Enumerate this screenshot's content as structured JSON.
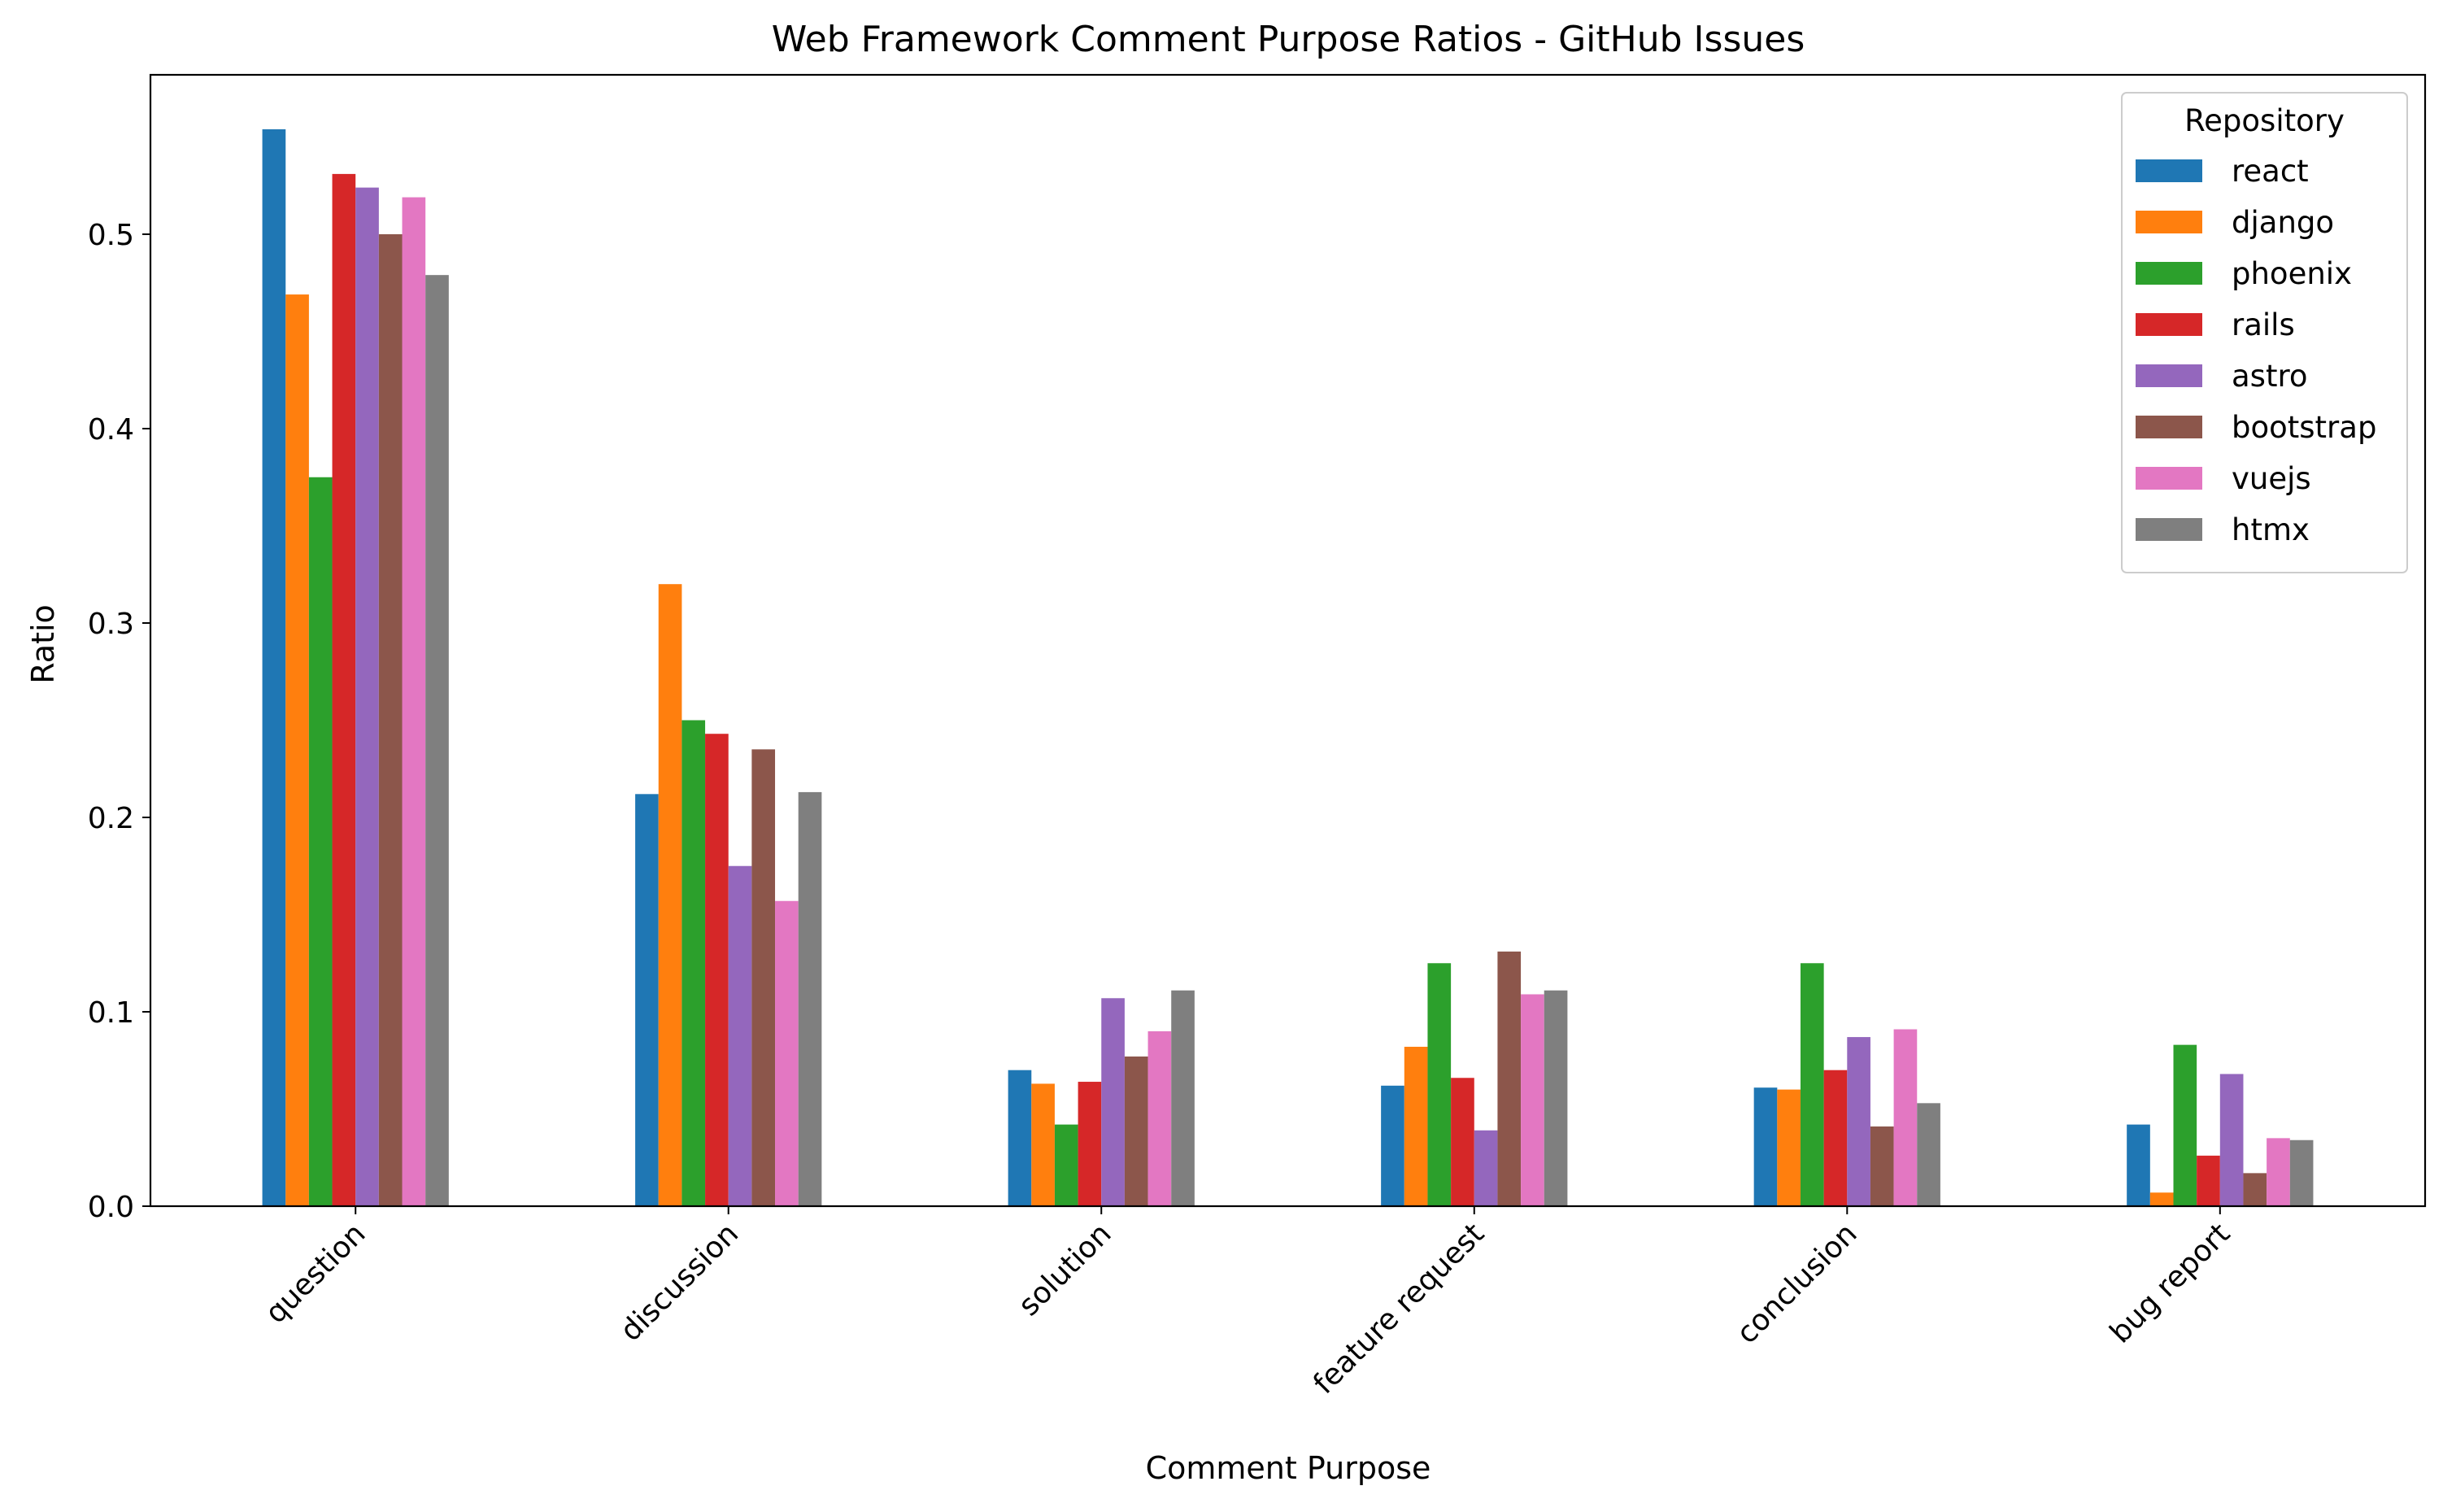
{
  "chart_data": {
    "type": "bar",
    "title": "Web Framework Comment Purpose Ratios - GitHub Issues",
    "xlabel": "Comment Purpose",
    "ylabel": "Ratio",
    "ylim": [
      0,
      0.582
    ],
    "yticks": [
      0.0,
      0.1,
      0.2,
      0.3,
      0.4,
      0.5
    ],
    "ytick_labels": [
      "0.0",
      "0.1",
      "0.2",
      "0.3",
      "0.4",
      "0.5"
    ],
    "x_tick_rotation_deg": 45,
    "grid": false,
    "categories": [
      "question",
      "discussion",
      "solution",
      "feature request",
      "conclusion",
      "bug report"
    ],
    "legend": {
      "title": "Repository",
      "placement": "top-right"
    },
    "series": [
      {
        "name": "react",
        "color": "#1f77b4",
        "values": [
          0.554,
          0.212,
          0.07,
          0.062,
          0.061,
          0.042
        ]
      },
      {
        "name": "django",
        "color": "#ff7f0e",
        "values": [
          0.469,
          0.32,
          0.063,
          0.082,
          0.06,
          0.007
        ]
      },
      {
        "name": "phoenix",
        "color": "#2ca02c",
        "values": [
          0.375,
          0.25,
          0.042,
          0.125,
          0.125,
          0.083
        ]
      },
      {
        "name": "rails",
        "color": "#d62728",
        "values": [
          0.531,
          0.243,
          0.064,
          0.066,
          0.07,
          0.026
        ]
      },
      {
        "name": "astro",
        "color": "#9467bd",
        "values": [
          0.524,
          0.175,
          0.107,
          0.039,
          0.087,
          0.068
        ]
      },
      {
        "name": "bootstrap",
        "color": "#8c564b",
        "values": [
          0.5,
          0.235,
          0.077,
          0.131,
          0.041,
          0.017
        ]
      },
      {
        "name": "vuejs",
        "color": "#e377c2",
        "values": [
          0.519,
          0.157,
          0.09,
          0.109,
          0.091,
          0.035
        ]
      },
      {
        "name": "htmx",
        "color": "#7f7f7f",
        "values": [
          0.479,
          0.213,
          0.111,
          0.111,
          0.053,
          0.034
        ]
      }
    ]
  }
}
